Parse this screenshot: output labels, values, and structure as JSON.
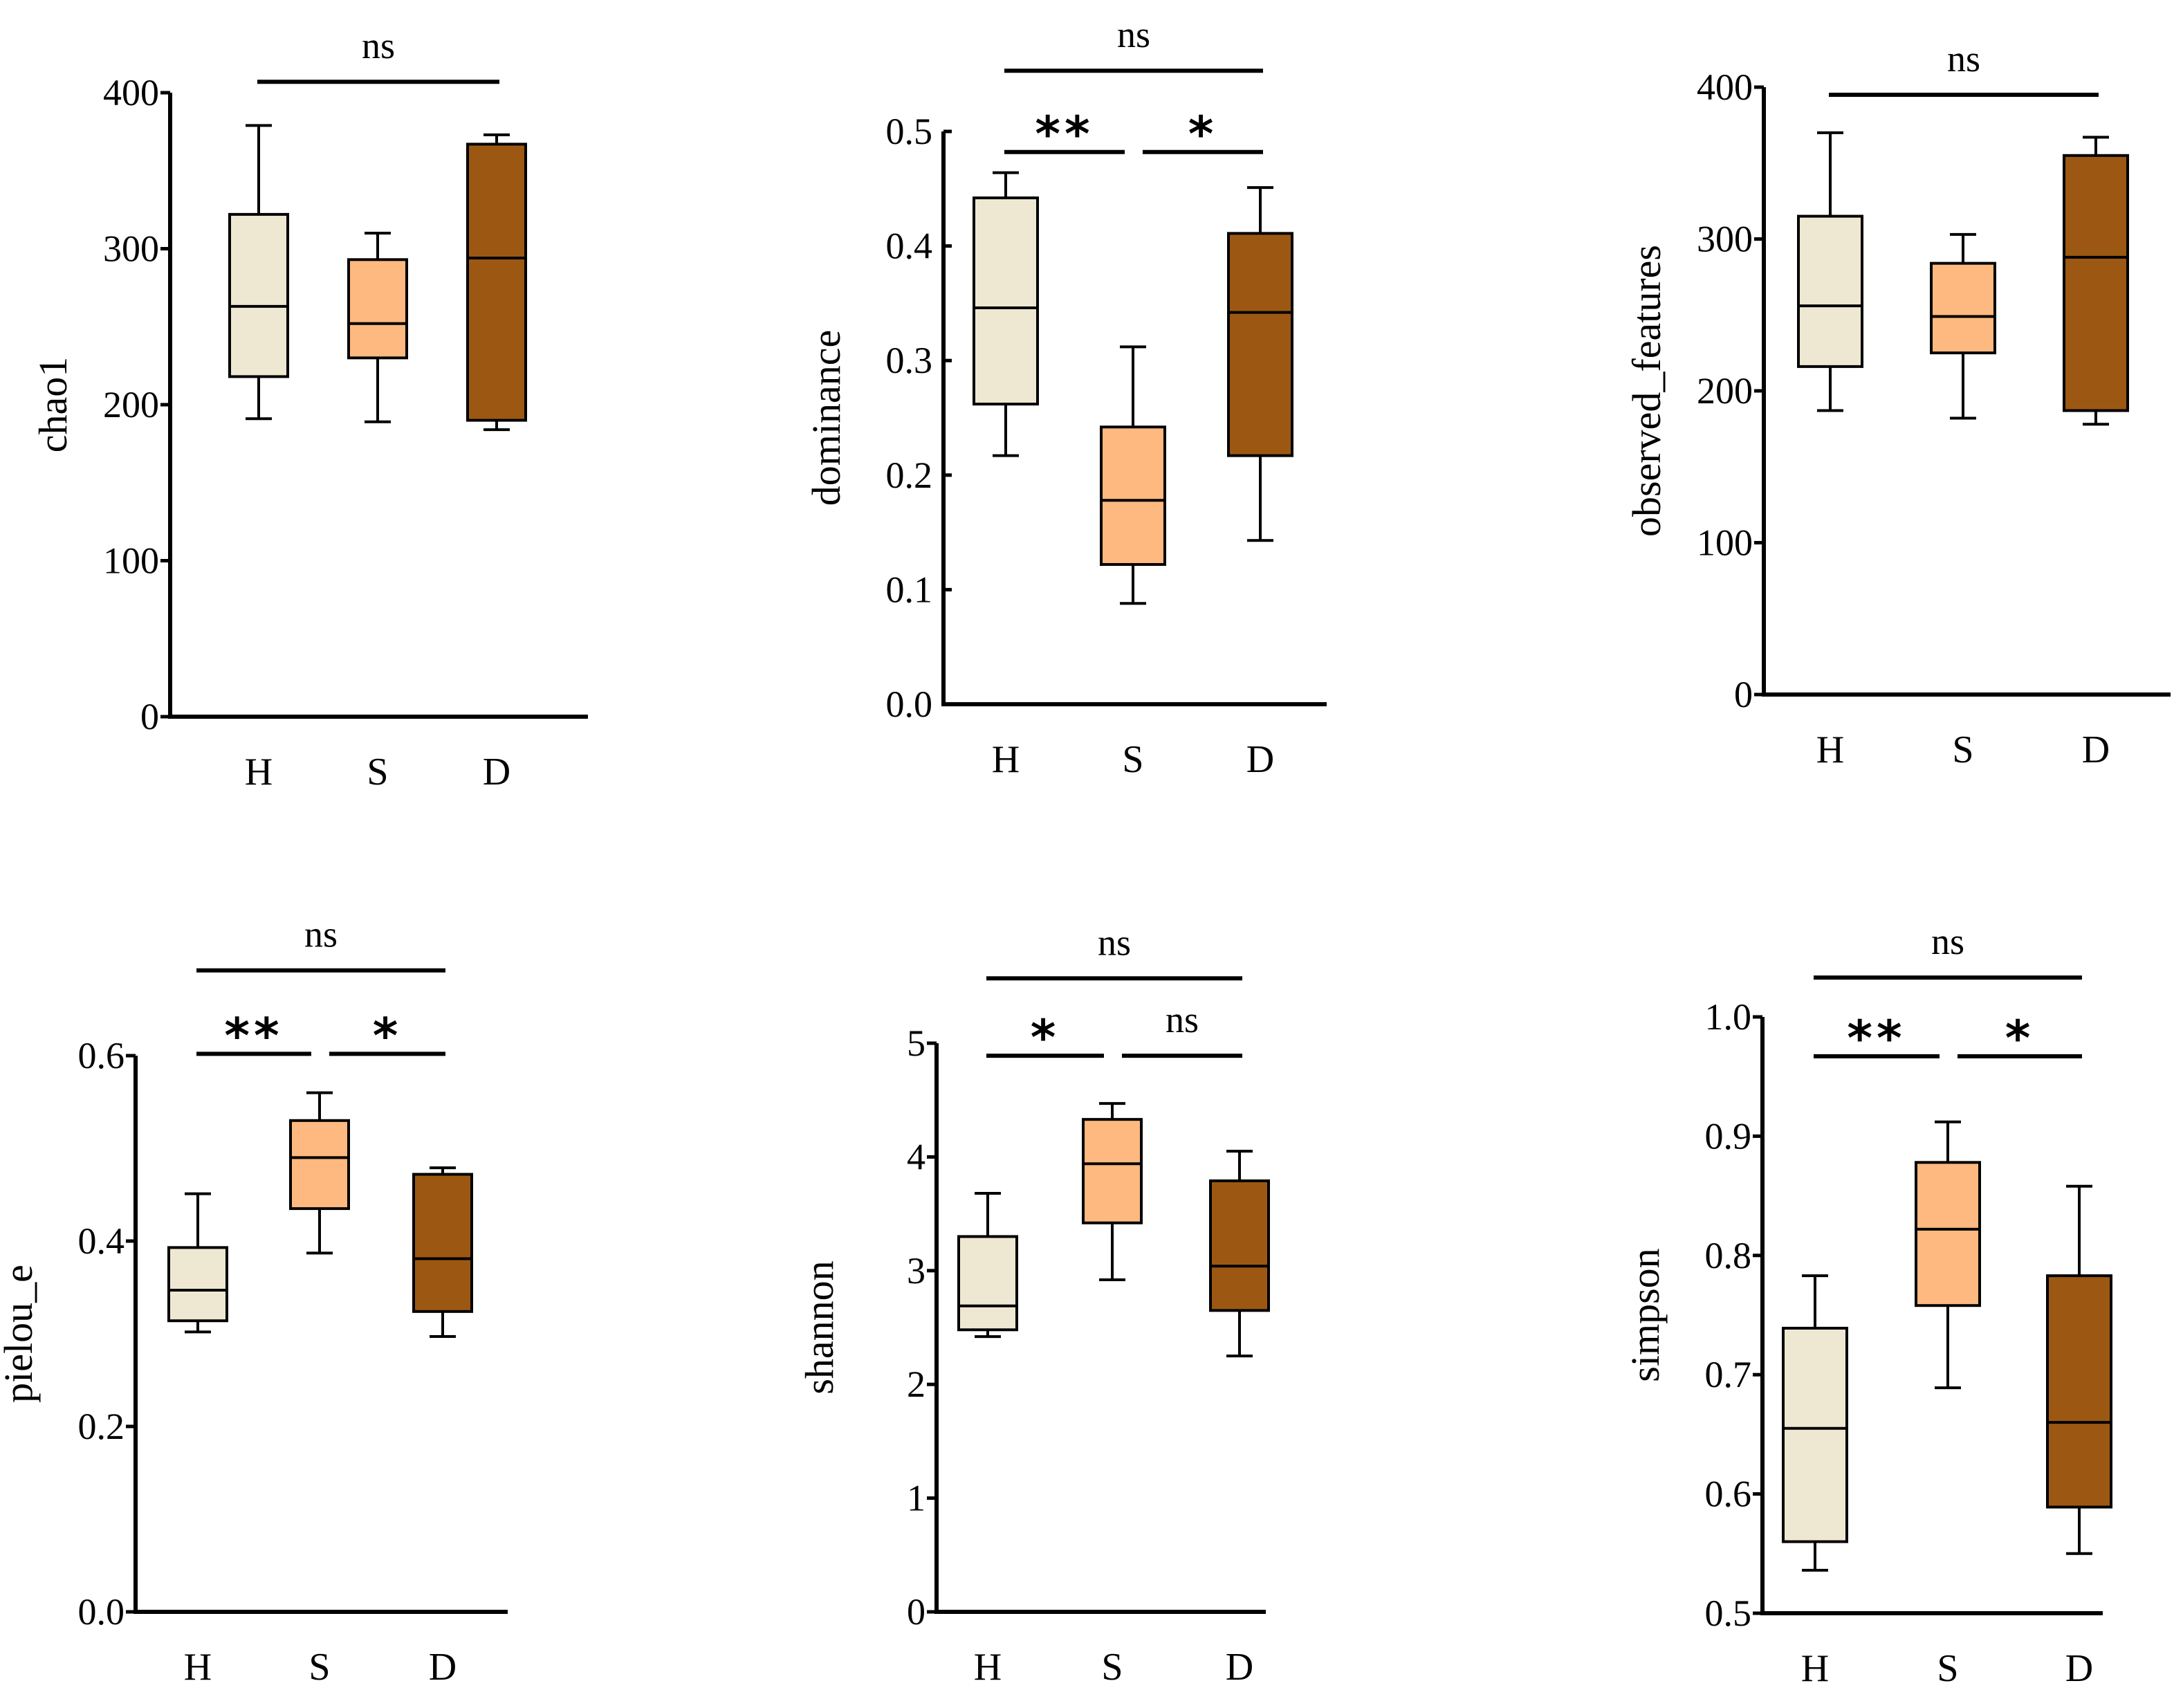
{
  "palette": {
    "H": "#eee8d2",
    "S": "#fdb97f",
    "D": "#9c5812",
    "line": "#000000"
  },
  "chart_data": [
    {
      "type": "box",
      "ylabel": "chao1",
      "ylim": [
        0,
        400
      ],
      "yticks": [
        0,
        100,
        200,
        300,
        400
      ],
      "yticklabels": [
        "0",
        "100",
        "200",
        "300",
        "400"
      ],
      "categories": [
        "H",
        "S",
        "D"
      ],
      "boxes": [
        {
          "group": "H",
          "min": 191,
          "q1": 218,
          "median": 263,
          "q3": 322,
          "max": 379
        },
        {
          "group": "S",
          "min": 189,
          "q1": 230,
          "median": 252,
          "q3": 293,
          "max": 310
        },
        {
          "group": "D",
          "min": 184,
          "q1": 190,
          "median": 294,
          "q3": 367,
          "max": 373
        }
      ],
      "significance": [
        {
          "from": 0,
          "to": 2,
          "label": "ns",
          "at": 407
        }
      ]
    },
    {
      "type": "box",
      "ylabel": "dominance",
      "ylim": [
        0,
        0.5
      ],
      "yticks": [
        0,
        0.1,
        0.2,
        0.3,
        0.4,
        0.5
      ],
      "yticklabels": [
        "0.0",
        "0.1",
        "0.2",
        "0.3",
        "0.4",
        "0.5"
      ],
      "categories": [
        "H",
        "S",
        "D"
      ],
      "boxes": [
        {
          "group": "H",
          "min": 0.217,
          "q1": 0.262,
          "median": 0.346,
          "q3": 0.442,
          "max": 0.464
        },
        {
          "group": "S",
          "min": 0.088,
          "q1": 0.122,
          "median": 0.178,
          "q3": 0.242,
          "max": 0.312
        },
        {
          "group": "D",
          "min": 0.143,
          "q1": 0.217,
          "median": 0.342,
          "q3": 0.411,
          "max": 0.451
        }
      ],
      "significance": [
        {
          "from": 0,
          "to": 2,
          "label": "ns",
          "at": 0.553
        },
        {
          "from": 0,
          "to": 1,
          "label": "**",
          "at": 0.482
        },
        {
          "from": 1,
          "to": 2,
          "label": "*",
          "at": 0.482
        }
      ]
    },
    {
      "type": "box",
      "ylabel": "observed_features",
      "ylim": [
        0,
        400
      ],
      "yticks": [
        0,
        100,
        200,
        300,
        400
      ],
      "yticklabels": [
        "0",
        "100",
        "200",
        "300",
        "400"
      ],
      "categories": [
        "H",
        "S",
        "D"
      ],
      "boxes": [
        {
          "group": "H",
          "min": 187,
          "q1": 216,
          "median": 256,
          "q3": 315,
          "max": 370
        },
        {
          "group": "S",
          "min": 182,
          "q1": 225,
          "median": 249,
          "q3": 284,
          "max": 303
        },
        {
          "group": "D",
          "min": 178,
          "q1": 187,
          "median": 288,
          "q3": 355,
          "max": 367
        }
      ],
      "significance": [
        {
          "from": 0,
          "to": 2,
          "label": "ns",
          "at": 395
        }
      ]
    },
    {
      "type": "box",
      "ylabel": "pielou_e",
      "ylim": [
        0,
        0.6
      ],
      "yticks": [
        0,
        0.2,
        0.4,
        0.6
      ],
      "yticklabels": [
        "0.0",
        "0.2",
        "0.4",
        "0.6"
      ],
      "categories": [
        "H",
        "S",
        "D"
      ],
      "boxes": [
        {
          "group": "H",
          "min": 0.302,
          "q1": 0.314,
          "median": 0.347,
          "q3": 0.393,
          "max": 0.451
        },
        {
          "group": "S",
          "min": 0.387,
          "q1": 0.435,
          "median": 0.49,
          "q3": 0.53,
          "max": 0.56
        },
        {
          "group": "D",
          "min": 0.297,
          "q1": 0.324,
          "median": 0.381,
          "q3": 0.472,
          "max": 0.479
        }
      ],
      "significance": [
        {
          "from": 0,
          "to": 2,
          "label": "ns",
          "at": 0.692
        },
        {
          "from": 0,
          "to": 1,
          "label": "**",
          "at": 0.602
        },
        {
          "from": 1,
          "to": 2,
          "label": "*",
          "at": 0.602
        }
      ]
    },
    {
      "type": "box",
      "ylabel": "shannon",
      "ylim": [
        0,
        5
      ],
      "yticks": [
        0,
        1,
        2,
        3,
        4,
        5
      ],
      "yticklabels": [
        "0",
        "1",
        "2",
        "3",
        "4",
        "5"
      ],
      "categories": [
        "H",
        "S",
        "D"
      ],
      "boxes": [
        {
          "group": "H",
          "min": 2.42,
          "q1": 2.48,
          "median": 2.69,
          "q3": 3.3,
          "max": 3.68
        },
        {
          "group": "S",
          "min": 2.92,
          "q1": 3.42,
          "median": 3.94,
          "q3": 4.33,
          "max": 4.47
        },
        {
          "group": "D",
          "min": 2.25,
          "q1": 2.65,
          "median": 3.04,
          "q3": 3.79,
          "max": 4.05
        }
      ],
      "significance": [
        {
          "from": 0,
          "to": 2,
          "label": "ns",
          "at": 5.57
        },
        {
          "from": 0,
          "to": 1,
          "label": "*",
          "at": 4.89
        },
        {
          "from": 1,
          "to": 2,
          "label": "ns",
          "at": 4.89
        }
      ]
    },
    {
      "type": "box",
      "ylabel": "simpson",
      "ylim": [
        0.5,
        1.0
      ],
      "yticks": [
        0.5,
        0.6,
        0.7,
        0.8,
        0.9,
        1.0
      ],
      "yticklabels": [
        "0.5",
        "0.6",
        "0.7",
        "0.8",
        "0.9",
        "1.0"
      ],
      "categories": [
        "H",
        "S",
        "D"
      ],
      "boxes": [
        {
          "group": "H",
          "min": 0.536,
          "q1": 0.56,
          "median": 0.655,
          "q3": 0.739,
          "max": 0.783
        },
        {
          "group": "S",
          "min": 0.689,
          "q1": 0.758,
          "median": 0.822,
          "q3": 0.878,
          "max": 0.912
        },
        {
          "group": "D",
          "min": 0.55,
          "q1": 0.589,
          "median": 0.66,
          "q3": 0.783,
          "max": 0.858
        }
      ],
      "significance": [
        {
          "from": 0,
          "to": 2,
          "label": "ns",
          "at": 1.033
        },
        {
          "from": 0,
          "to": 1,
          "label": "**",
          "at": 0.967
        },
        {
          "from": 1,
          "to": 2,
          "label": "*",
          "at": 0.967
        }
      ]
    }
  ]
}
